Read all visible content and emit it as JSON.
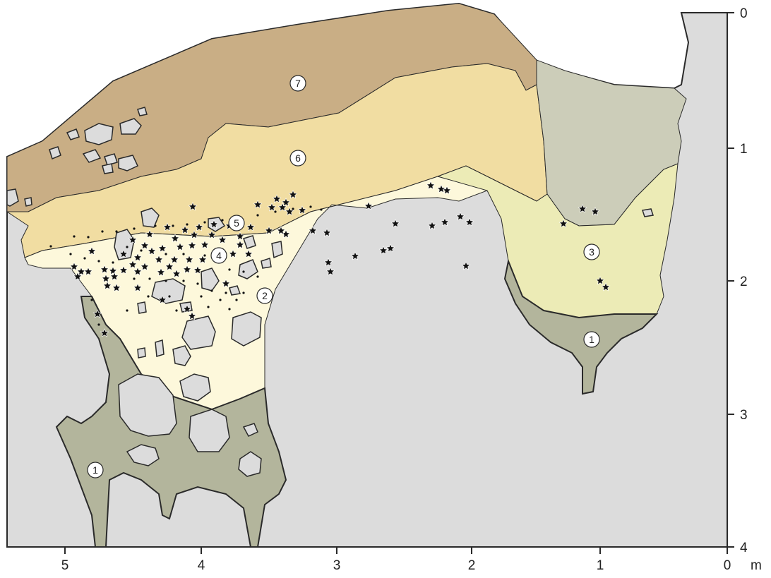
{
  "colors": {
    "background": "#ffffff",
    "bedrock": "#dcdcdc",
    "outline": "#2a2a2a",
    "layer_1": "#b3b59c",
    "layer_2": "#fdf8db",
    "layer_3": "#ecebb6",
    "layer_4": "#f8efc4",
    "layer_5": "#f8efc4",
    "layer_6": "#f1dda2",
    "layer_7": "#c9ae85",
    "right_fill": "#cccdb9",
    "stones": "#dcdcdc",
    "finds": "#111111"
  },
  "axes": {
    "x_ticks": [
      "5",
      "4",
      "3",
      "2",
      "1",
      "0"
    ],
    "x_unit": "m",
    "y_ticks": [
      "0",
      "1",
      "2",
      "3",
      "4"
    ]
  },
  "layers": [
    {
      "id": "1",
      "label": "1"
    },
    {
      "id": "1b",
      "label": "1"
    },
    {
      "id": "2",
      "label": "2"
    },
    {
      "id": "3",
      "label": "3"
    },
    {
      "id": "4",
      "label": "4"
    },
    {
      "id": "5",
      "label": "5"
    },
    {
      "id": "6",
      "label": "6"
    },
    {
      "id": "7",
      "label": "7"
    }
  ],
  "legend_symbols": [
    "star-icon",
    "dot-icon"
  ]
}
